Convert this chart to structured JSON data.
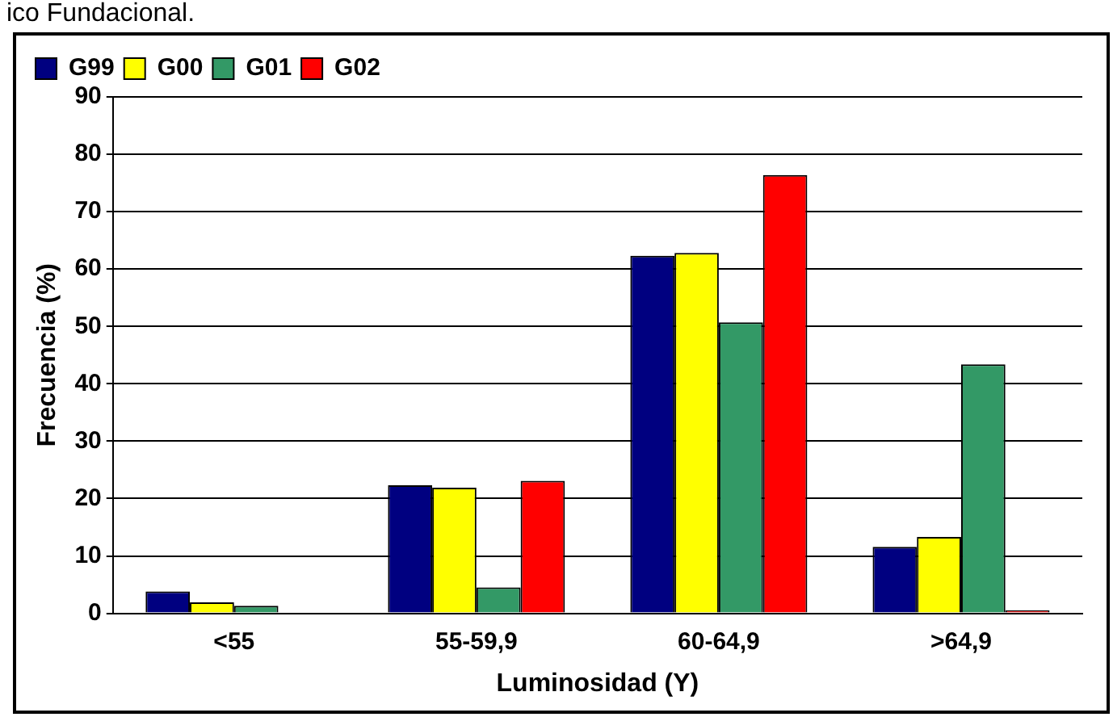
{
  "chart_data": {
    "type": "bar",
    "annotations": [
      "ico Fundacional."
    ],
    "xlabel": "Luminosidad (Y)",
    "ylabel": "Frecuencia (%)",
    "categories": [
      "<55",
      "55-59,9",
      "60-64,9",
      ">64,9"
    ],
    "series": [
      {
        "name": "G99",
        "color": "#000080",
        "values": [
          3.8,
          22.3,
          62.3,
          11.6
        ]
      },
      {
        "name": "G00",
        "color": "#ffff00",
        "values": [
          1.9,
          21.9,
          62.8,
          13.3
        ]
      },
      {
        "name": "G01",
        "color": "#339966",
        "values": [
          1.3,
          4.5,
          50.7,
          43.4
        ]
      },
      {
        "name": "G02",
        "color": "#ff0000",
        "values": [
          null,
          23.1,
          76.4,
          0.5
        ]
      }
    ],
    "ylim": [
      0,
      90
    ],
    "yticks": [
      0,
      10,
      20,
      30,
      40,
      50,
      60,
      70,
      80,
      90
    ],
    "grid": "y",
    "legend": "top left"
  }
}
